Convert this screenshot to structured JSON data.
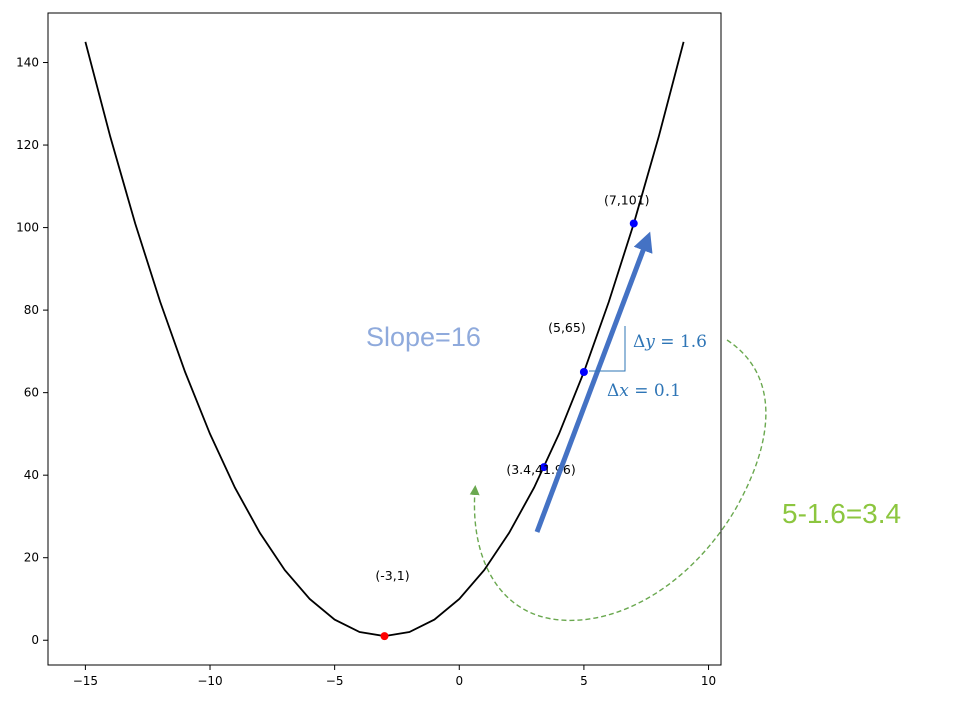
{
  "chart_data": {
    "type": "line",
    "title": "",
    "xlabel": "",
    "ylabel": "",
    "xlim": [
      -16.5,
      10.5
    ],
    "ylim": [
      -6,
      152
    ],
    "x_ticks": [
      -15,
      -10,
      -5,
      0,
      5,
      10
    ],
    "y_ticks": [
      0,
      20,
      40,
      60,
      80,
      100,
      120,
      140
    ],
    "x_tick_labels": [
      "−15",
      "−10",
      "−5",
      "0",
      "5",
      "10"
    ],
    "y_tick_labels": [
      "0",
      "20",
      "40",
      "60",
      "80",
      "100",
      "120",
      "140"
    ],
    "grid": false,
    "series": [
      {
        "color": "#000000",
        "x": [
          -15,
          -14,
          -13,
          -12,
          -11,
          -10,
          -9,
          -8,
          -7,
          -6,
          -5,
          -4,
          -3,
          -2,
          -1,
          0,
          1,
          2,
          3,
          4,
          5,
          6,
          7,
          8,
          9
        ],
        "y": [
          145,
          122,
          101,
          82,
          65,
          50,
          37,
          26,
          17,
          10,
          5,
          2,
          1,
          2,
          5,
          10,
          17,
          26,
          37,
          50,
          65,
          82,
          101,
          122,
          145
        ]
      }
    ],
    "points": [
      {
        "x": -3,
        "y": 1,
        "label": "(-3,1)",
        "color": "#ff0000"
      },
      {
        "x": 3.4,
        "y": 41.96,
        "label": "(3.4,41.96)",
        "color": "#0000ff"
      },
      {
        "x": 5,
        "y": 65,
        "label": "(5,65)",
        "color": "#0000ff"
      },
      {
        "x": 7,
        "y": 101,
        "label": "(7,101)",
        "color": "#0000ff"
      }
    ],
    "annotations": {
      "slope_text": "Slope=16",
      "delta_y_text": "Δy = 1.6",
      "delta_x_text": "Δx = 0.1",
      "delta_symbol": "Δ",
      "delta_y_var": "y",
      "delta_y_rest": " = 1.6",
      "delta_x_var": "x",
      "delta_x_rest": " = 0.1",
      "result_text": "5-1.6=3.4",
      "arrow_color": "#4472c4",
      "curve_arrow_color": "#6aa84f",
      "slope_color": "#8faadc",
      "result_color": "#8cc63f",
      "delta_color": "#2e75b6"
    }
  }
}
